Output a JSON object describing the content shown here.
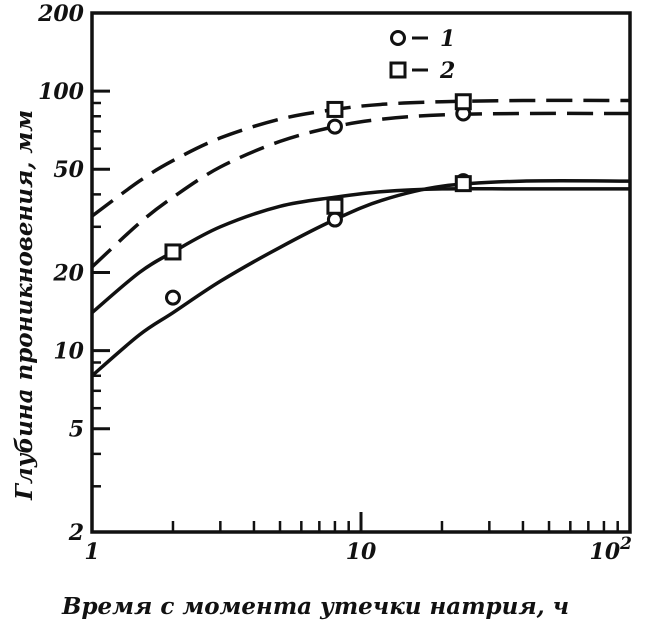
{
  "chart_data": {
    "type": "line",
    "xlabel": "Время с момента утечки натрия, ч",
    "ylabel": "Глубина проникновения, мм",
    "x_scale": "log",
    "y_scale": "log",
    "xlim": [
      1,
      100
    ],
    "ylim": [
      2,
      200
    ],
    "x_ticks": [
      {
        "value": 1,
        "label": "1"
      },
      {
        "value": 10,
        "label": "10"
      },
      {
        "value": 100,
        "label": "10",
        "sup": "2"
      }
    ],
    "y_ticks": [
      {
        "value": 2,
        "label": "2"
      },
      {
        "value": 5,
        "label": "5"
      },
      {
        "value": 10,
        "label": "10"
      },
      {
        "value": 20,
        "label": "20"
      },
      {
        "value": 50,
        "label": "50"
      },
      {
        "value": 100,
        "label": "100"
      },
      {
        "value": 200,
        "label": "200"
      }
    ],
    "grid": false,
    "legend": {
      "placement": "top-center",
      "items": [
        {
          "marker": "circle",
          "label": "1"
        },
        {
          "marker": "square",
          "label": "2"
        }
      ]
    },
    "points": [
      {
        "marker": "circle",
        "data": [
          [
            2,
            16
          ],
          [
            8,
            32
          ],
          [
            24,
            45
          ]
        ]
      },
      {
        "marker": "circle",
        "data": [
          [
            8,
            73
          ],
          [
            24,
            82
          ]
        ]
      },
      {
        "marker": "square",
        "data": [
          [
            2,
            24
          ],
          [
            8,
            36
          ],
          [
            24,
            44
          ]
        ]
      },
      {
        "marker": "square",
        "data": [
          [
            8,
            85
          ],
          [
            24,
            91
          ]
        ]
      }
    ],
    "lines": [
      {
        "style": "dashed",
        "data": [
          [
            1,
            33
          ],
          [
            1.5,
            45
          ],
          [
            2,
            54
          ],
          [
            3,
            66
          ],
          [
            5,
            78
          ],
          [
            8,
            85
          ],
          [
            12,
            89
          ],
          [
            20,
            91
          ],
          [
            40,
            92
          ],
          [
            100,
            92
          ]
        ]
      },
      {
        "style": "dashed",
        "data": [
          [
            1,
            21
          ],
          [
            1.5,
            31
          ],
          [
            2,
            39
          ],
          [
            3,
            51
          ],
          [
            5,
            64
          ],
          [
            8,
            73
          ],
          [
            12,
            78
          ],
          [
            20,
            81
          ],
          [
            40,
            82
          ],
          [
            100,
            82
          ]
        ]
      },
      {
        "style": "solid",
        "data": [
          [
            1,
            14
          ],
          [
            1.5,
            20
          ],
          [
            2,
            24
          ],
          [
            3,
            30
          ],
          [
            5,
            36
          ],
          [
            8,
            39
          ],
          [
            12,
            41
          ],
          [
            20,
            42
          ],
          [
            40,
            42
          ],
          [
            100,
            42
          ]
        ]
      },
      {
        "style": "solid",
        "data": [
          [
            1,
            8
          ],
          [
            1.5,
            11.5
          ],
          [
            2,
            14
          ],
          [
            3,
            18.5
          ],
          [
            5,
            25
          ],
          [
            8,
            32
          ],
          [
            12,
            38
          ],
          [
            20,
            43
          ],
          [
            40,
            45
          ],
          [
            100,
            45
          ]
        ]
      }
    ]
  }
}
